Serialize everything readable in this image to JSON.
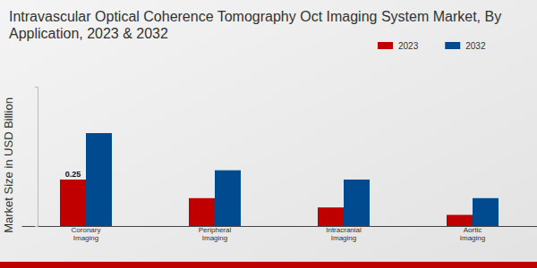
{
  "chart_data": {
    "type": "bar",
    "title": "Intravascular Optical Coherence Tomography Oct Imaging System Market, By Application, 2023 & 2032",
    "y_label": "Market Size in USD Billion",
    "categories": [
      "Coronary Imaging",
      "Peripheral Imaging",
      "Intracranial Imaging",
      "Aortic Imaging"
    ],
    "series": [
      {
        "name": "2023",
        "color": "#c00000",
        "values": [
          0.25,
          0.15,
          0.1,
          0.06
        ],
        "data_labels": true,
        "value_labels": [
          "0.25",
          null,
          null,
          null
        ]
      },
      {
        "name": "2032",
        "color": "#004a8f",
        "values": [
          0.5,
          0.3,
          0.25,
          0.15
        ]
      }
    ],
    "ylim": [
      0,
      0.75
    ],
    "yticks": [],
    "grid": false,
    "legend": "upper right",
    "tick_labels": "x"
  }
}
